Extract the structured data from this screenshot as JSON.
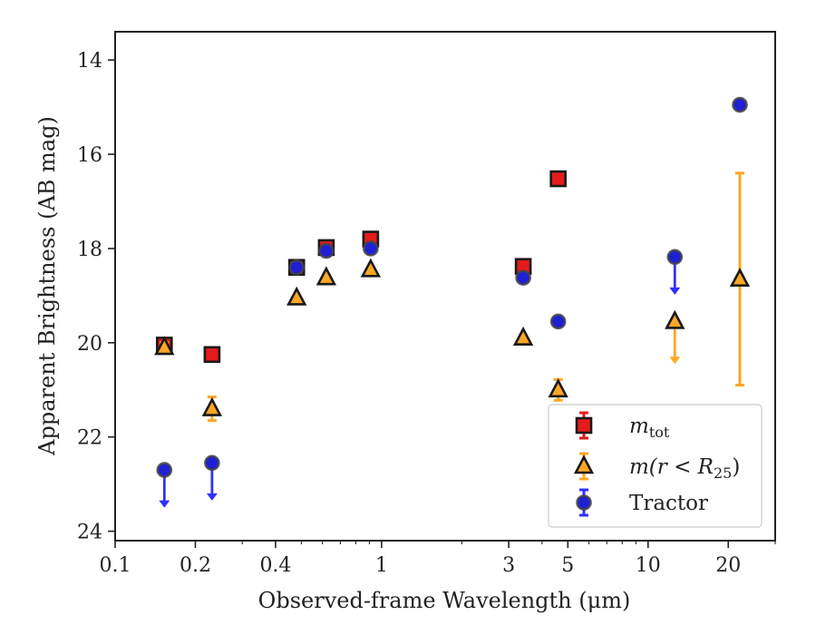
{
  "chart_data": {
    "type": "scatter",
    "xlabel": "Observed-frame Wavelength (μm)",
    "ylabel": "Apparent Brightness (AB mag)",
    "x_scale": "log",
    "xlim": [
      0.1,
      30
    ],
    "ylim": [
      24.2,
      13.4
    ],
    "y_inverted": true,
    "x_ticks": [
      {
        "value": 0.1,
        "label": "0.1"
      },
      {
        "value": 0.2,
        "label": "0.2"
      },
      {
        "value": 0.4,
        "label": "0.4"
      },
      {
        "value": 1,
        "label": "1"
      },
      {
        "value": 3,
        "label": "3"
      },
      {
        "value": 5,
        "label": "5"
      },
      {
        "value": 10,
        "label": "10"
      },
      {
        "value": 20,
        "label": "20"
      }
    ],
    "y_ticks": [
      {
        "value": 14,
        "label": "14"
      },
      {
        "value": 16,
        "label": "16"
      },
      {
        "value": 18,
        "label": "18"
      },
      {
        "value": 20,
        "label": "20"
      },
      {
        "value": 22,
        "label": "22"
      },
      {
        "value": 24,
        "label": "24"
      }
    ],
    "grid": false,
    "legend_position": "lower-right",
    "series": [
      {
        "name": "m_tot",
        "legend": {
          "main": "m",
          "sub": "tot"
        },
        "marker": "square",
        "fill": "#e41a1c",
        "edge": "#1a1a1a",
        "errcolor": "#e41a1c",
        "points": [
          {
            "x": 0.153,
            "y": 20.05,
            "err": 0.08
          },
          {
            "x": 0.231,
            "y": 20.25,
            "err": 0.05
          },
          {
            "x": 0.48,
            "y": 18.4,
            "err": 0.03
          },
          {
            "x": 0.62,
            "y": 17.98,
            "err": 0.03
          },
          {
            "x": 0.91,
            "y": 17.8,
            "err": 0.03
          },
          {
            "x": 3.4,
            "y": 18.38,
            "err": 0.04
          },
          {
            "x": 4.6,
            "y": 16.52,
            "err": 0.03
          }
        ]
      },
      {
        "name": "m(r < R_25)",
        "legend": {
          "pre": "m(r < R",
          "sub": "25",
          "post": ")"
        },
        "marker": "triangle",
        "fill": "#ffa726",
        "edge": "#1a1a1a",
        "errcolor": "#ffa726",
        "points": [
          {
            "x": 0.153,
            "y": 20.1,
            "err": 0.1
          },
          {
            "x": 0.231,
            "y": 21.4,
            "err": 0.25
          },
          {
            "x": 0.48,
            "y": 19.05,
            "err": 0.03
          },
          {
            "x": 0.62,
            "y": 18.62,
            "err": 0.03
          },
          {
            "x": 0.91,
            "y": 18.45,
            "err": 0.03
          },
          {
            "x": 3.4,
            "y": 19.9,
            "err": 0.04
          },
          {
            "x": 4.6,
            "y": 21.0,
            "err": 0.22
          },
          {
            "x": 12.6,
            "y": 19.55,
            "upper_limit": true,
            "arrow_to": 20.45
          },
          {
            "x": 22.1,
            "y": 18.65,
            "err_low": 16.4,
            "err_high": 20.9
          }
        ]
      },
      {
        "name": "Tractor",
        "legend": {
          "main": "Tractor"
        },
        "marker": "circle",
        "fill": "#1f1fd6",
        "edge": "#444444",
        "errcolor": "#3030ff",
        "points": [
          {
            "x": 0.153,
            "y": 22.7,
            "upper_limit": true,
            "arrow_to": 23.5
          },
          {
            "x": 0.231,
            "y": 22.55,
            "upper_limit": true,
            "arrow_to": 23.35
          },
          {
            "x": 0.48,
            "y": 18.4,
            "err": 0.03
          },
          {
            "x": 0.62,
            "y": 18.05,
            "err": 0.03
          },
          {
            "x": 0.91,
            "y": 18.0,
            "err": 0.03
          },
          {
            "x": 3.4,
            "y": 18.62,
            "err": 0.04
          },
          {
            "x": 4.6,
            "y": 19.55,
            "err": 0.04
          },
          {
            "x": 12.6,
            "y": 18.18,
            "upper_limit": true,
            "arrow_to": 18.98
          },
          {
            "x": 22.1,
            "y": 14.95,
            "err": 0.05
          }
        ]
      }
    ]
  }
}
